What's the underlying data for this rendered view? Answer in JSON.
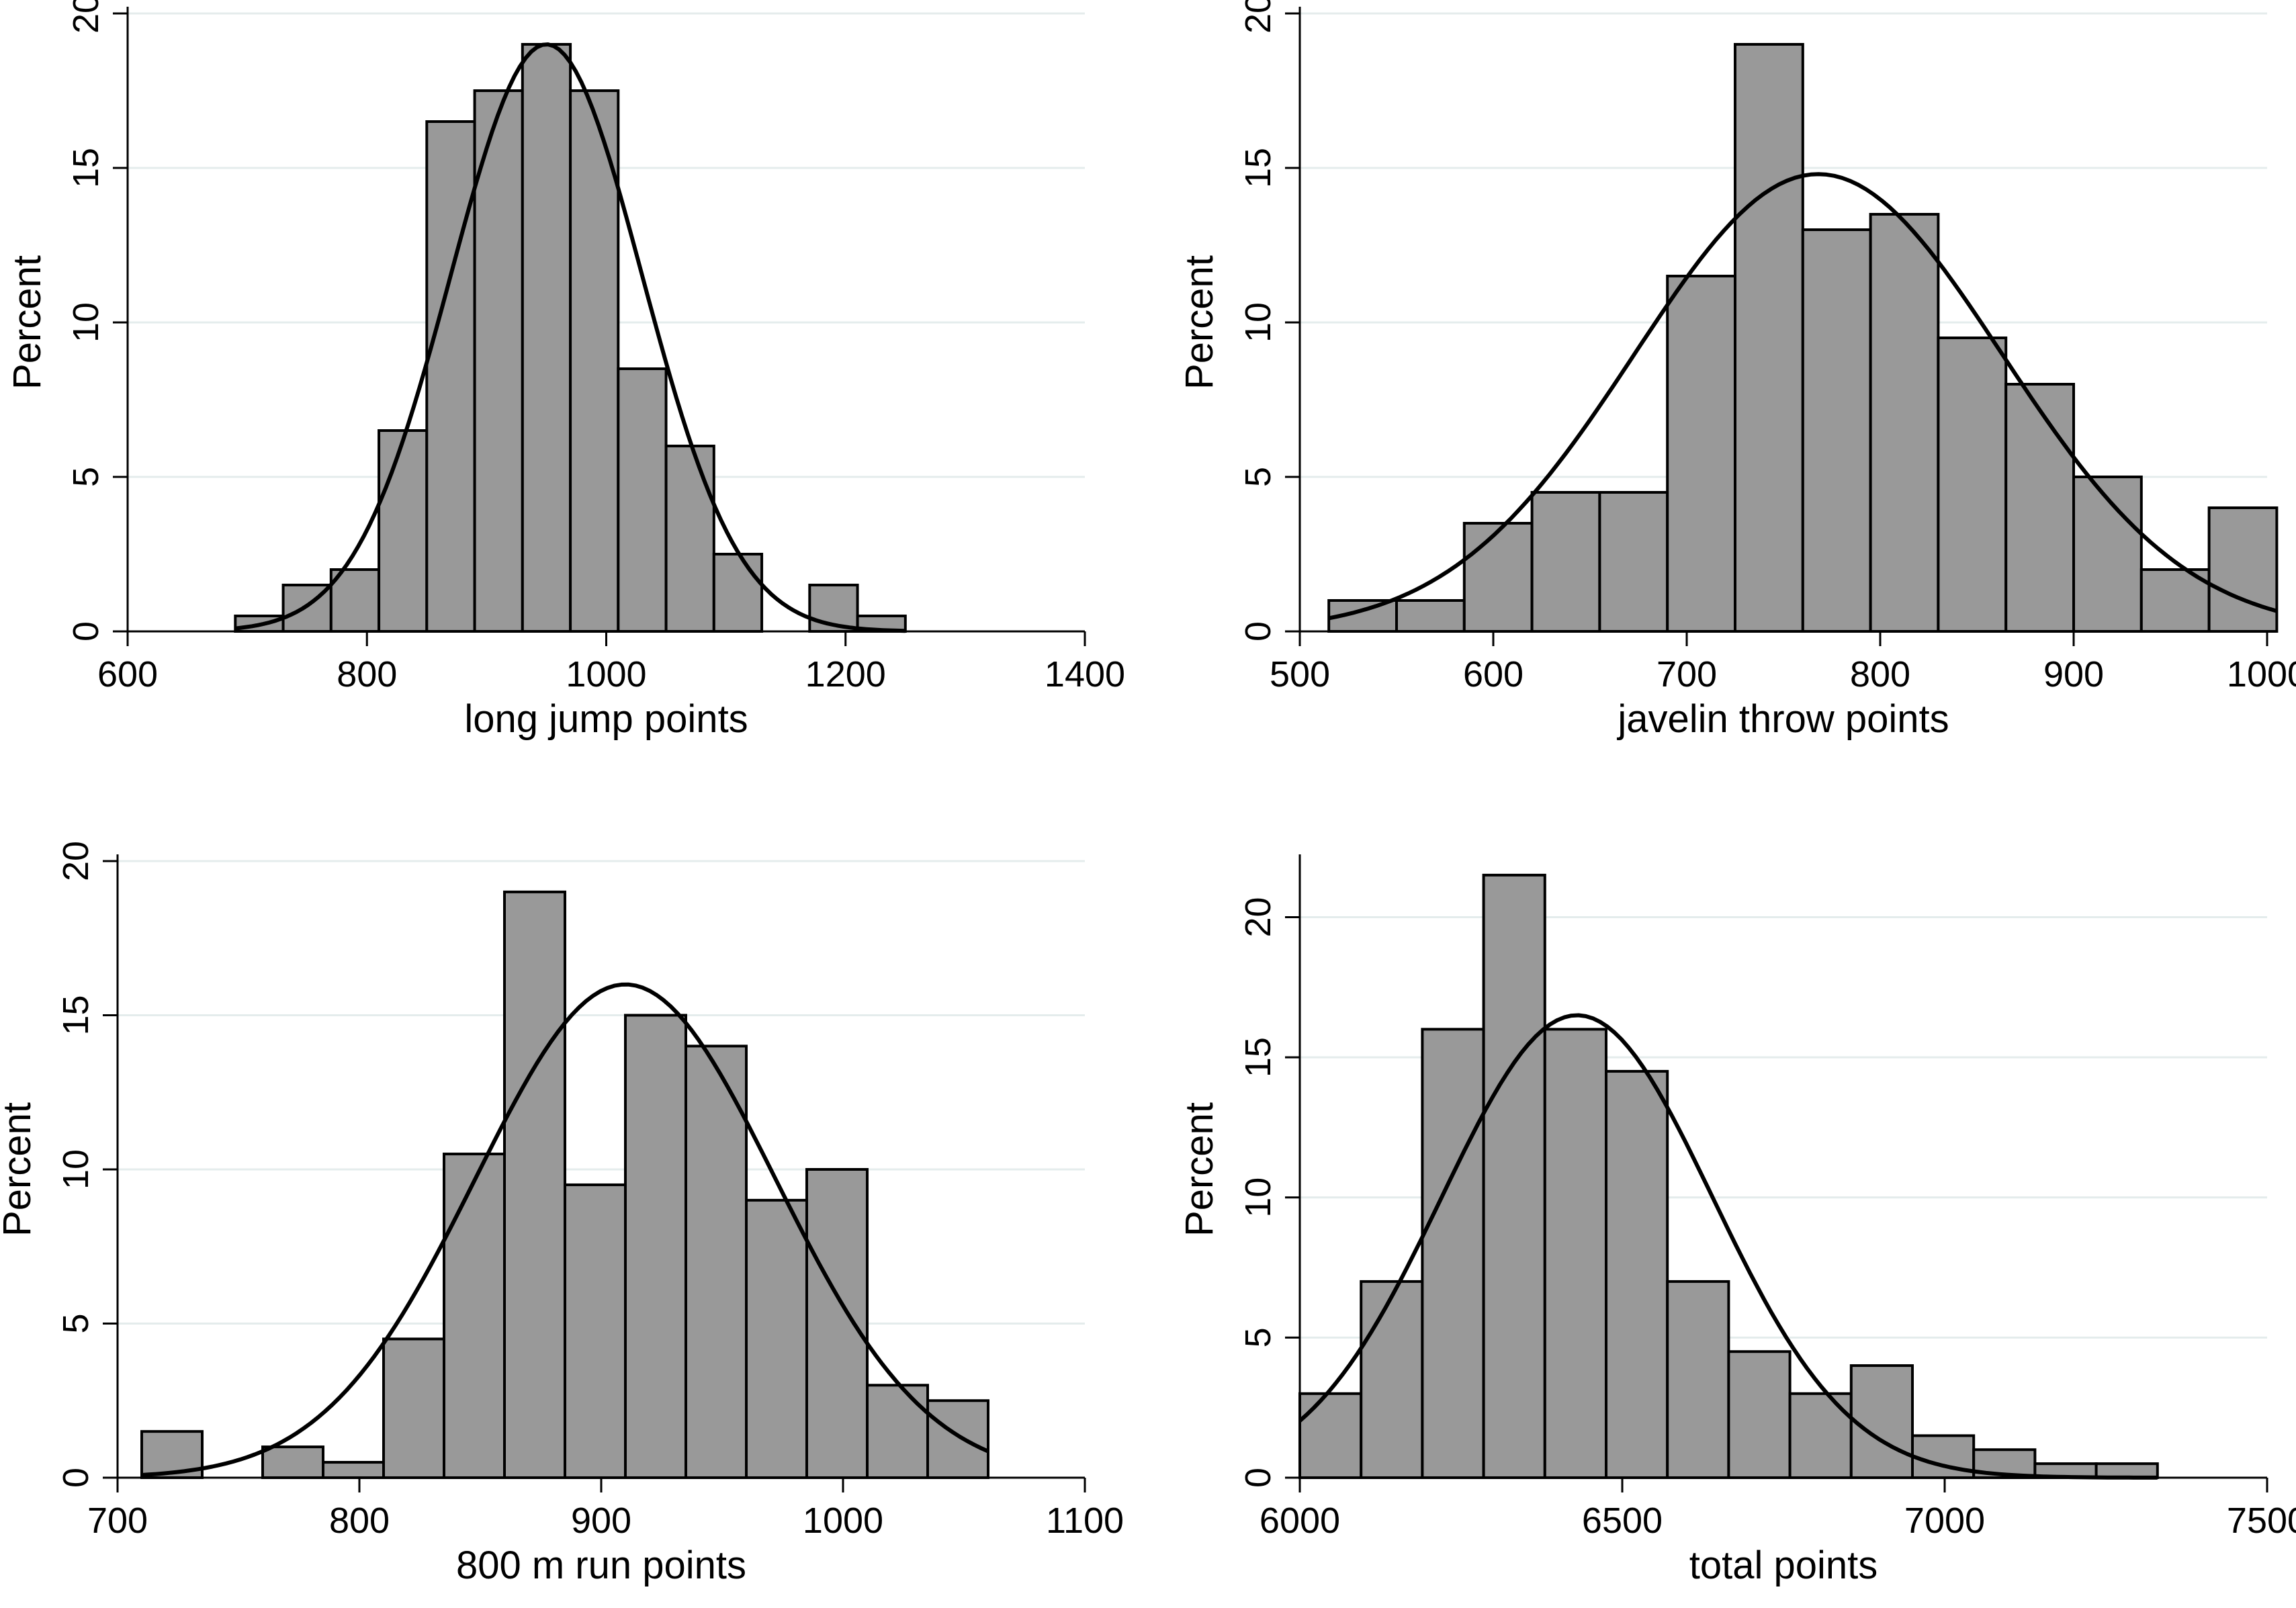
{
  "chart_data": [
    {
      "type": "bar",
      "subtype": "histogram",
      "xlabel": "long jump points",
      "ylabel": "Percent",
      "xlim": [
        600,
        1400
      ],
      "ylim": [
        0,
        20
      ],
      "xticks": [
        600,
        800,
        1000,
        1200,
        1400
      ],
      "yticks": [
        0,
        5,
        10,
        15,
        20
      ],
      "bins": [
        {
          "x0": 690,
          "x1": 730,
          "value": 0.5
        },
        {
          "x0": 730,
          "x1": 770,
          "value": 1.5
        },
        {
          "x0": 770,
          "x1": 810,
          "value": 2.0
        },
        {
          "x0": 810,
          "x1": 850,
          "value": 6.5
        },
        {
          "x0": 850,
          "x1": 890,
          "value": 16.5
        },
        {
          "x0": 890,
          "x1": 930,
          "value": 17.5
        },
        {
          "x0": 930,
          "x1": 970,
          "value": 19.0
        },
        {
          "x0": 970,
          "x1": 1010,
          "value": 17.5
        },
        {
          "x0": 1010,
          "x1": 1050,
          "value": 8.5
        },
        {
          "x0": 1050,
          "x1": 1090,
          "value": 6.0
        },
        {
          "x0": 1090,
          "x1": 1130,
          "value": 2.5
        },
        {
          "x0": 1130,
          "x1": 1170,
          "value": 0
        },
        {
          "x0": 1170,
          "x1": 1210,
          "value": 1.5
        },
        {
          "x0": 1210,
          "x1": 1250,
          "value": 0.5
        }
      ],
      "normal_curve": {
        "mean": 950,
        "peak": 19.0,
        "sd": 80,
        "x_from": 690,
        "x_to": 1250
      }
    },
    {
      "type": "bar",
      "subtype": "histogram",
      "xlabel": "javelin throw points",
      "ylabel": "Percent",
      "xlim": [
        500,
        1000
      ],
      "ylim": [
        0,
        20
      ],
      "xticks": [
        500,
        600,
        700,
        800,
        900,
        1000
      ],
      "yticks": [
        0,
        5,
        10,
        15,
        20
      ],
      "bins": [
        {
          "x0": 515,
          "x1": 550,
          "value": 1.0
        },
        {
          "x0": 550,
          "x1": 585,
          "value": 1.0
        },
        {
          "x0": 585,
          "x1": 620,
          "value": 3.5
        },
        {
          "x0": 620,
          "x1": 655,
          "value": 4.5
        },
        {
          "x0": 655,
          "x1": 690,
          "value": 4.5
        },
        {
          "x0": 690,
          "x1": 725,
          "value": 11.5
        },
        {
          "x0": 725,
          "x1": 760,
          "value": 19.0
        },
        {
          "x0": 760,
          "x1": 795,
          "value": 13.0
        },
        {
          "x0": 795,
          "x1": 830,
          "value": 13.5
        },
        {
          "x0": 830,
          "x1": 865,
          "value": 9.5
        },
        {
          "x0": 865,
          "x1": 900,
          "value": 8.0
        },
        {
          "x0": 900,
          "x1": 935,
          "value": 5.0
        },
        {
          "x0": 935,
          "x1": 970,
          "value": 2.0
        },
        {
          "x0": 970,
          "x1": 1005,
          "value": 4.0
        }
      ],
      "normal_curve": {
        "mean": 768,
        "peak": 14.8,
        "sd": 95,
        "x_from": 515,
        "x_to": 1005
      }
    },
    {
      "type": "bar",
      "subtype": "histogram",
      "xlabel": "800 m run points",
      "ylabel": "Percent",
      "xlim": [
        700,
        1100
      ],
      "ylim": [
        0,
        20
      ],
      "xticks": [
        700,
        800,
        900,
        1000,
        1100
      ],
      "yticks": [
        0,
        5,
        10,
        15,
        20
      ],
      "bins": [
        {
          "x0": 710,
          "x1": 735,
          "value": 1.5
        },
        {
          "x0": 735,
          "x1": 760,
          "value": 0
        },
        {
          "x0": 760,
          "x1": 785,
          "value": 1.0
        },
        {
          "x0": 785,
          "x1": 810,
          "value": 0.5
        },
        {
          "x0": 810,
          "x1": 835,
          "value": 4.5
        },
        {
          "x0": 835,
          "x1": 860,
          "value": 10.5
        },
        {
          "x0": 860,
          "x1": 885,
          "value": 19.0
        },
        {
          "x0": 885,
          "x1": 910,
          "value": 9.5
        },
        {
          "x0": 910,
          "x1": 935,
          "value": 15.0
        },
        {
          "x0": 935,
          "x1": 960,
          "value": 14.0
        },
        {
          "x0": 960,
          "x1": 985,
          "value": 9.0
        },
        {
          "x0": 985,
          "x1": 1010,
          "value": 10.0
        },
        {
          "x0": 1010,
          "x1": 1035,
          "value": 3.0
        },
        {
          "x0": 1035,
          "x1": 1060,
          "value": 2.5
        }
      ],
      "normal_curve": {
        "mean": 910,
        "peak": 16.0,
        "sd": 62,
        "x_from": 710,
        "x_to": 1060
      }
    },
    {
      "type": "bar",
      "subtype": "histogram",
      "xlabel": "total points",
      "ylabel": "Percent",
      "xlim": [
        6000,
        7500
      ],
      "ylim": [
        0,
        22
      ],
      "xticks": [
        6000,
        6500,
        7000,
        7500
      ],
      "yticks": [
        0,
        5,
        10,
        15,
        20
      ],
      "bins": [
        {
          "x0": 6000,
          "x1": 6095,
          "value": 3.0
        },
        {
          "x0": 6095,
          "x1": 6190,
          "value": 7.0
        },
        {
          "x0": 6190,
          "x1": 6285,
          "value": 16.0
        },
        {
          "x0": 6285,
          "x1": 6380,
          "value": 21.5
        },
        {
          "x0": 6380,
          "x1": 6475,
          "value": 16.0
        },
        {
          "x0": 6475,
          "x1": 6570,
          "value": 14.5
        },
        {
          "x0": 6570,
          "x1": 6665,
          "value": 7.0
        },
        {
          "x0": 6665,
          "x1": 6760,
          "value": 4.5
        },
        {
          "x0": 6760,
          "x1": 6855,
          "value": 3.0
        },
        {
          "x0": 6855,
          "x1": 6950,
          "value": 4.0
        },
        {
          "x0": 6950,
          "x1": 7045,
          "value": 1.5
        },
        {
          "x0": 7045,
          "x1": 7140,
          "value": 1.0
        },
        {
          "x0": 7140,
          "x1": 7235,
          "value": 0.5
        },
        {
          "x0": 7235,
          "x1": 7330,
          "value": 0.5
        }
      ],
      "normal_curve": {
        "mean": 6430,
        "peak": 16.5,
        "sd": 210,
        "x_from": 6000,
        "x_to": 7330
      }
    }
  ]
}
